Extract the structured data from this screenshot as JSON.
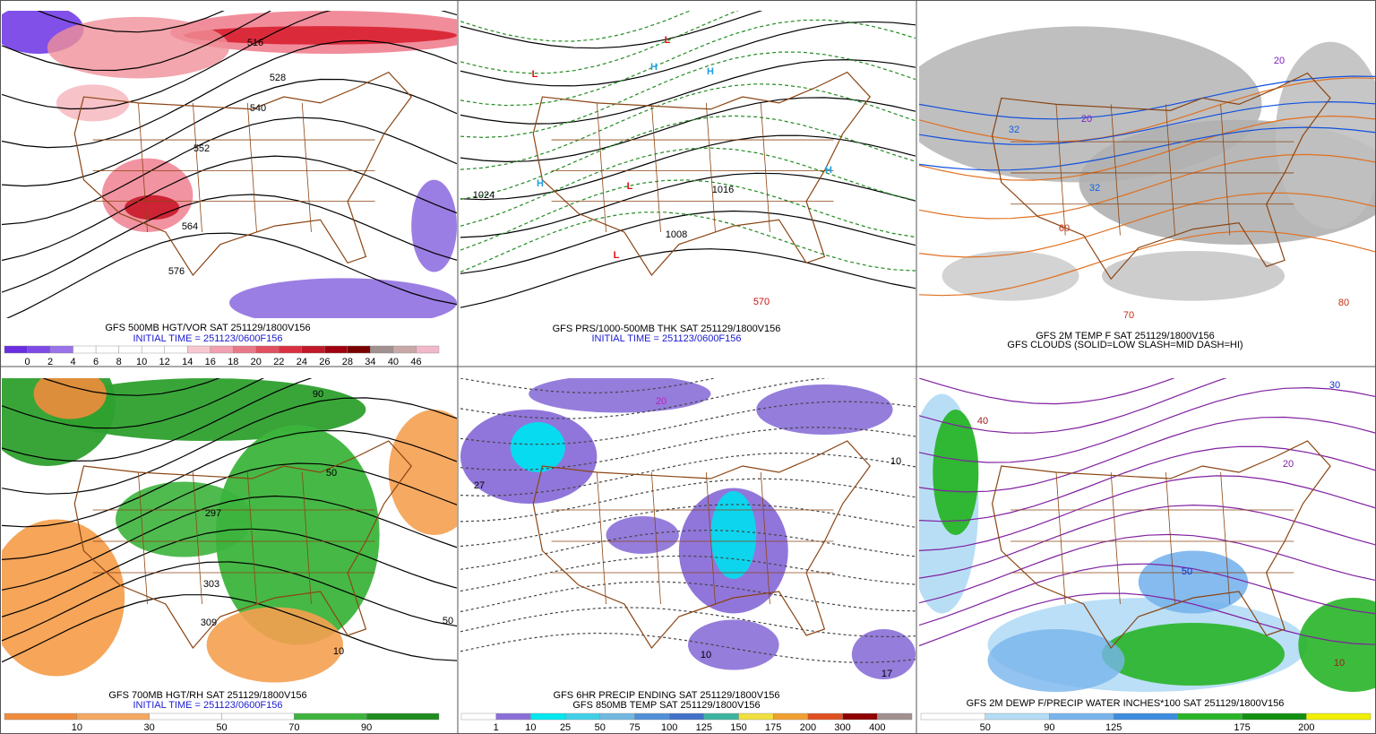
{
  "panels": [
    {
      "captions": [
        {
          "text": "GFS 500MB HGT/VOR SAT 251129/1800V156",
          "color": "#000000"
        },
        {
          "text": "INITIAL TIME = 251123/0600F156",
          "color": "#1a1ad0"
        }
      ],
      "labels": [
        "516",
        "528",
        "540",
        "552",
        "564",
        "576"
      ],
      "legend": {
        "colors": [
          "#6a2ee0",
          "#7d4ae6",
          "#9a72ea",
          "#ffffff",
          "#ffffff",
          "#ffffff",
          "#ffffff",
          "#ffffff",
          "#f8c8d0",
          "#f0a0b0",
          "#e87888",
          "#e05060",
          "#d83040",
          "#c01828",
          "#a00010",
          "#780000",
          "#a09090",
          "#c8a8a8",
          "#f0b8c8"
        ],
        "labels": [
          "0",
          "2",
          "4",
          "6",
          "8",
          "10",
          "12",
          "14",
          "16",
          "18",
          "20",
          "22",
          "24",
          "26",
          "28",
          "34",
          "40",
          "46"
        ]
      }
    },
    {
      "captions": [
        {
          "text": "GFS PRS/1000-500MB THK SAT 251129/1800V156",
          "color": "#000000"
        },
        {
          "text": "INITIAL TIME = 251123/0600F156",
          "color": "#1a1ad0"
        }
      ],
      "labels": [
        "L",
        "L",
        "L",
        "L",
        "H",
        "H",
        "H",
        "H",
        "1024",
        "1016",
        "1008",
        "570"
      ]
    },
    {
      "captions": [
        {
          "text": "GFS 2M TEMP F SAT 251129/1800V156",
          "color": "#000000"
        },
        {
          "text": "GFS CLOUDS (SOLID=LOW SLASH=MID DASH=HI)",
          "color": "#000000"
        }
      ],
      "labels": [
        "32",
        "32",
        "20",
        "20",
        "60",
        "70",
        "80"
      ]
    },
    {
      "captions": [
        {
          "text": "GFS 700MB HGT/RH SAT 251129/1800V156",
          "color": "#000000"
        },
        {
          "text": "INITIAL TIME = 251123/0600F156",
          "color": "#1a1ad0"
        }
      ],
      "labels": [
        "90",
        "50",
        "297",
        "303",
        "309",
        "10",
        "50"
      ],
      "legend": {
        "colors": [
          "#f08c3c",
          "#f5a860",
          "#ffffff",
          "#ffffff",
          "#3cb43c",
          "#1e8c1e"
        ],
        "labels": [
          "10",
          "30",
          "50",
          "70",
          "90"
        ]
      }
    },
    {
      "captions": [
        {
          "text": "GFS 6HR PRECIP ENDING SAT 251129/1800V156",
          "color": "#000000"
        },
        {
          "text": "GFS 850MB TEMP SAT 251129/1800V156",
          "color": "#000000"
        }
      ],
      "labels": [
        "27",
        "10",
        "20",
        "10",
        "17"
      ],
      "legend": {
        "colors": [
          "#ffffff",
          "#8a6fd8",
          "#00e8f0",
          "#40d0e8",
          "#70b8e0",
          "#5090d8",
          "#4070c8",
          "#3cb4a0",
          "#f0e040",
          "#f0a030",
          "#e05020",
          "#900000",
          "#a09090"
        ],
        "labels": [
          "1",
          "10",
          "25",
          "50",
          "75",
          "100",
          "125",
          "150",
          "175",
          "200",
          "300",
          "400"
        ]
      }
    },
    {
      "captions": [
        {
          "text": "GFS 2M DEWP F/PRECIP WATER INCHES*100 SAT 251129/1800V156",
          "color": "#000000"
        }
      ],
      "labels": [
        "40",
        "30",
        "20",
        "10",
        "50"
      ],
      "legend": {
        "colors": [
          "#ffffff",
          "#b4dcf5",
          "#78b4ec",
          "#3c8ce0",
          "#28b428",
          "#109010",
          "#f0f000"
        ],
        "labels": [
          "50",
          "90",
          "125",
          null,
          "175",
          "200"
        ]
      }
    }
  ]
}
